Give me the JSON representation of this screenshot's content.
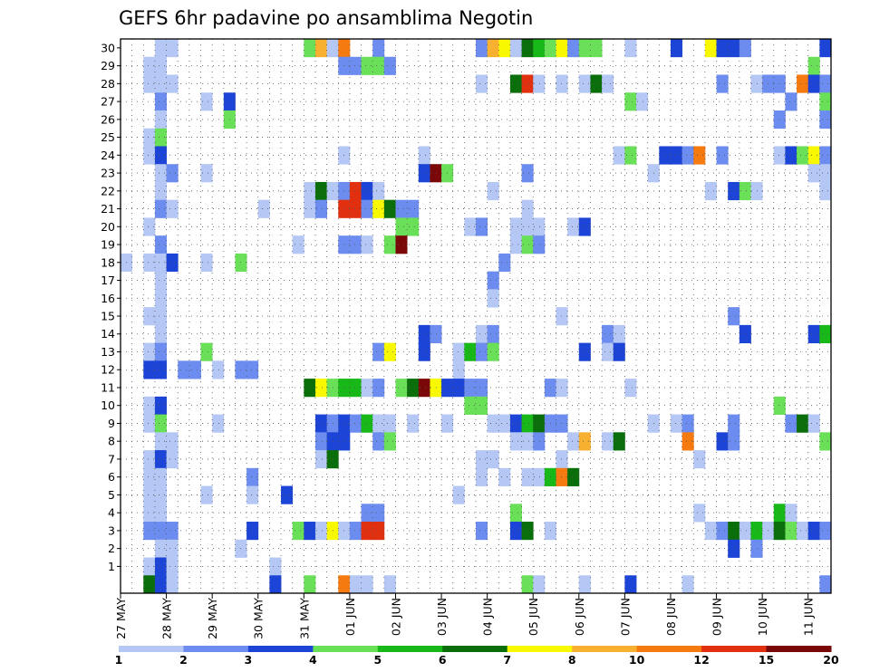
{
  "chart_data": {
    "type": "heatmap",
    "title": "GEFS 6hr padavine po ansamblima Negotin",
    "x_tick_labels": [
      "27 MAY",
      "28 MAY",
      "29 MAY",
      "30 MAY",
      "31 MAY",
      "01 JUN",
      "02 JUN",
      "03 JUN",
      "04 JUN",
      "05 JUN",
      "06 JUN",
      "07 JUN",
      "08 JUN",
      "09 JUN",
      "10 JUN",
      "11 JUN"
    ],
    "y_tick_labels": [
      "1",
      "2",
      "3",
      "4",
      "5",
      "6",
      "7",
      "8",
      "9",
      "10",
      "11",
      "12",
      "13",
      "14",
      "15",
      "16",
      "17",
      "18",
      "19",
      "20",
      "21",
      "22",
      "23",
      "24",
      "25",
      "26",
      "27",
      "28",
      "29",
      "30"
    ],
    "time_steps": 62,
    "members": 31,
    "grid": true,
    "colorbar": {
      "position": "bottom",
      "labels": [
        "1",
        "2",
        "3",
        "4",
        "5",
        "6",
        "7",
        "8",
        "10",
        "12",
        "15",
        "20"
      ],
      "colors": [
        "#b5c7f5",
        "#6d8cef",
        "#1c44d6",
        "#6ae058",
        "#17b817",
        "#0a6e0a",
        "#f8f800",
        "#f8b030",
        "#f57a10",
        "#e03010",
        "#7a0808"
      ]
    },
    "cells": [
      [
        3,
        30,
        1
      ],
      [
        4,
        30,
        1
      ],
      [
        16,
        30,
        4
      ],
      [
        17,
        30,
        8
      ],
      [
        18,
        30,
        1
      ],
      [
        19,
        30,
        9
      ],
      [
        22,
        30,
        2
      ],
      [
        31,
        30,
        2
      ],
      [
        32,
        30,
        8
      ],
      [
        33,
        30,
        7
      ],
      [
        34,
        30,
        1
      ],
      [
        35,
        30,
        6
      ],
      [
        36,
        30,
        5
      ],
      [
        37,
        30,
        4
      ],
      [
        38,
        30,
        7
      ],
      [
        39,
        30,
        2
      ],
      [
        40,
        30,
        4
      ],
      [
        41,
        30,
        4
      ],
      [
        44,
        30,
        1
      ],
      [
        48,
        30,
        3
      ],
      [
        51,
        30,
        7
      ],
      [
        52,
        30,
        3
      ],
      [
        53,
        30,
        3
      ],
      [
        54,
        30,
        2
      ],
      [
        61,
        30,
        3
      ],
      [
        2,
        29,
        1
      ],
      [
        3,
        29,
        1
      ],
      [
        19,
        29,
        2
      ],
      [
        20,
        29,
        2
      ],
      [
        21,
        29,
        4
      ],
      [
        22,
        29,
        4
      ],
      [
        23,
        29,
        2
      ],
      [
        60,
        29,
        4
      ],
      [
        2,
        28,
        1
      ],
      [
        3,
        28,
        1
      ],
      [
        4,
        28,
        1
      ],
      [
        31,
        28,
        1
      ],
      [
        34,
        28,
        6
      ],
      [
        35,
        28,
        10
      ],
      [
        36,
        28,
        1
      ],
      [
        38,
        28,
        1
      ],
      [
        40,
        28,
        1
      ],
      [
        41,
        28,
        6
      ],
      [
        42,
        28,
        1
      ],
      [
        52,
        28,
        2
      ],
      [
        55,
        28,
        1
      ],
      [
        56,
        28,
        2
      ],
      [
        57,
        28,
        2
      ],
      [
        59,
        28,
        9
      ],
      [
        60,
        28,
        3
      ],
      [
        61,
        28,
        2
      ],
      [
        3,
        27,
        2
      ],
      [
        7,
        27,
        1
      ],
      [
        9,
        27,
        3
      ],
      [
        44,
        27,
        4
      ],
      [
        45,
        27,
        1
      ],
      [
        58,
        27,
        2
      ],
      [
        61,
        27,
        4
      ],
      [
        3,
        26,
        1
      ],
      [
        9,
        26,
        4
      ],
      [
        57,
        26,
        2
      ],
      [
        61,
        26,
        2
      ],
      [
        2,
        25,
        1
      ],
      [
        3,
        25,
        4
      ],
      [
        2,
        24,
        1
      ],
      [
        3,
        24,
        3
      ],
      [
        19,
        24,
        1
      ],
      [
        26,
        24,
        1
      ],
      [
        43,
        24,
        1
      ],
      [
        44,
        24,
        4
      ],
      [
        47,
        24,
        3
      ],
      [
        48,
        24,
        3
      ],
      [
        49,
        24,
        2
      ],
      [
        50,
        24,
        9
      ],
      [
        52,
        24,
        2
      ],
      [
        57,
        24,
        1
      ],
      [
        58,
        24,
        3
      ],
      [
        59,
        24,
        4
      ],
      [
        60,
        24,
        7
      ],
      [
        61,
        24,
        2
      ],
      [
        3,
        23,
        1
      ],
      [
        4,
        23,
        2
      ],
      [
        7,
        23,
        1
      ],
      [
        26,
        23,
        3
      ],
      [
        27,
        23,
        11
      ],
      [
        28,
        23,
        4
      ],
      [
        35,
        23,
        2
      ],
      [
        46,
        23,
        1
      ],
      [
        60,
        23,
        1
      ],
      [
        61,
        23,
        1
      ],
      [
        3,
        22,
        1
      ],
      [
        16,
        22,
        1
      ],
      [
        17,
        22,
        6
      ],
      [
        18,
        22,
        1
      ],
      [
        19,
        22,
        2
      ],
      [
        20,
        22,
        10
      ],
      [
        21,
        22,
        3
      ],
      [
        22,
        22,
        1
      ],
      [
        32,
        22,
        1
      ],
      [
        51,
        22,
        1
      ],
      [
        53,
        22,
        3
      ],
      [
        54,
        22,
        4
      ],
      [
        55,
        22,
        1
      ],
      [
        61,
        22,
        1
      ],
      [
        3,
        21,
        2
      ],
      [
        4,
        21,
        1
      ],
      [
        12,
        21,
        1
      ],
      [
        16,
        21,
        1
      ],
      [
        17,
        21,
        2
      ],
      [
        19,
        21,
        10
      ],
      [
        20,
        21,
        10
      ],
      [
        21,
        21,
        2
      ],
      [
        22,
        21,
        7
      ],
      [
        23,
        21,
        6
      ],
      [
        24,
        21,
        2
      ],
      [
        25,
        21,
        2
      ],
      [
        35,
        21,
        1
      ],
      [
        2,
        20,
        1
      ],
      [
        24,
        20,
        4
      ],
      [
        25,
        20,
        4
      ],
      [
        30,
        20,
        1
      ],
      [
        31,
        20,
        2
      ],
      [
        34,
        20,
        1
      ],
      [
        35,
        20,
        1
      ],
      [
        36,
        20,
        1
      ],
      [
        39,
        20,
        1
      ],
      [
        40,
        20,
        3
      ],
      [
        3,
        19,
        2
      ],
      [
        15,
        19,
        1
      ],
      [
        19,
        19,
        2
      ],
      [
        20,
        19,
        2
      ],
      [
        21,
        19,
        1
      ],
      [
        23,
        19,
        4
      ],
      [
        24,
        19,
        11
      ],
      [
        34,
        19,
        1
      ],
      [
        35,
        19,
        4
      ],
      [
        36,
        19,
        2
      ],
      [
        0,
        18,
        1
      ],
      [
        2,
        18,
        1
      ],
      [
        3,
        18,
        1
      ],
      [
        4,
        18,
        3
      ],
      [
        7,
        18,
        1
      ],
      [
        10,
        18,
        4
      ],
      [
        33,
        18,
        2
      ],
      [
        3,
        17,
        1
      ],
      [
        32,
        17,
        2
      ],
      [
        3,
        16,
        1
      ],
      [
        32,
        16,
        1
      ],
      [
        2,
        15,
        1
      ],
      [
        3,
        15,
        1
      ],
      [
        38,
        15,
        1
      ],
      [
        53,
        15,
        2
      ],
      [
        3,
        14,
        1
      ],
      [
        26,
        14,
        3
      ],
      [
        27,
        14,
        2
      ],
      [
        31,
        14,
        1
      ],
      [
        32,
        14,
        2
      ],
      [
        42,
        14,
        2
      ],
      [
        43,
        14,
        1
      ],
      [
        54,
        14,
        3
      ],
      [
        60,
        14,
        3
      ],
      [
        61,
        14,
        5
      ],
      [
        2,
        13,
        1
      ],
      [
        3,
        13,
        2
      ],
      [
        7,
        13,
        4
      ],
      [
        22,
        13,
        2
      ],
      [
        23,
        13,
        7
      ],
      [
        26,
        13,
        3
      ],
      [
        29,
        13,
        1
      ],
      [
        30,
        13,
        5
      ],
      [
        31,
        13,
        2
      ],
      [
        32,
        13,
        4
      ],
      [
        40,
        13,
        3
      ],
      [
        42,
        13,
        1
      ],
      [
        43,
        13,
        3
      ],
      [
        2,
        12,
        3
      ],
      [
        3,
        12,
        3
      ],
      [
        5,
        12,
        2
      ],
      [
        6,
        12,
        2
      ],
      [
        8,
        12,
        1
      ],
      [
        10,
        12,
        2
      ],
      [
        11,
        12,
        2
      ],
      [
        29,
        12,
        1
      ],
      [
        16,
        11,
        6
      ],
      [
        17,
        11,
        7
      ],
      [
        18,
        11,
        4
      ],
      [
        19,
        11,
        5
      ],
      [
        20,
        11,
        5
      ],
      [
        21,
        11,
        1
      ],
      [
        22,
        11,
        2
      ],
      [
        24,
        11,
        4
      ],
      [
        25,
        11,
        6
      ],
      [
        26,
        11,
        20
      ],
      [
        27,
        11,
        7
      ],
      [
        28,
        11,
        3
      ],
      [
        29,
        11,
        3
      ],
      [
        30,
        11,
        2
      ],
      [
        31,
        11,
        2
      ],
      [
        37,
        11,
        2
      ],
      [
        38,
        11,
        1
      ],
      [
        44,
        11,
        1
      ],
      [
        2,
        10,
        1
      ],
      [
        3,
        10,
        3
      ],
      [
        30,
        10,
        4
      ],
      [
        31,
        10,
        4
      ],
      [
        57,
        10,
        4
      ],
      [
        2,
        9,
        1
      ],
      [
        3,
        9,
        4
      ],
      [
        8,
        9,
        1
      ],
      [
        17,
        9,
        3
      ],
      [
        18,
        9,
        2
      ],
      [
        19,
        9,
        3
      ],
      [
        20,
        9,
        2
      ],
      [
        21,
        9,
        5
      ],
      [
        22,
        9,
        1
      ],
      [
        23,
        9,
        1
      ],
      [
        25,
        9,
        1
      ],
      [
        28,
        9,
        1
      ],
      [
        32,
        9,
        1
      ],
      [
        33,
        9,
        1
      ],
      [
        34,
        9,
        3
      ],
      [
        35,
        9,
        5
      ],
      [
        36,
        9,
        6
      ],
      [
        37,
        9,
        2
      ],
      [
        38,
        9,
        2
      ],
      [
        46,
        9,
        1
      ],
      [
        48,
        9,
        1
      ],
      [
        49,
        9,
        2
      ],
      [
        53,
        9,
        2
      ],
      [
        58,
        9,
        2
      ],
      [
        59,
        9,
        6
      ],
      [
        60,
        9,
        1
      ],
      [
        3,
        8,
        1
      ],
      [
        4,
        8,
        1
      ],
      [
        17,
        8,
        2
      ],
      [
        18,
        8,
        3
      ],
      [
        19,
        8,
        3
      ],
      [
        22,
        8,
        2
      ],
      [
        23,
        8,
        4
      ],
      [
        34,
        8,
        1
      ],
      [
        35,
        8,
        1
      ],
      [
        36,
        8,
        2
      ],
      [
        39,
        8,
        1
      ],
      [
        40,
        8,
        8
      ],
      [
        42,
        8,
        1
      ],
      [
        43,
        8,
        6
      ],
      [
        49,
        8,
        9
      ],
      [
        52,
        8,
        3
      ],
      [
        53,
        8,
        2
      ],
      [
        61,
        8,
        4
      ],
      [
        2,
        7,
        1
      ],
      [
        3,
        7,
        3
      ],
      [
        4,
        7,
        1
      ],
      [
        17,
        7,
        1
      ],
      [
        18,
        7,
        6
      ],
      [
        31,
        7,
        1
      ],
      [
        32,
        7,
        1
      ],
      [
        38,
        7,
        1
      ],
      [
        50,
        7,
        1
      ],
      [
        2,
        6,
        1
      ],
      [
        3,
        6,
        1
      ],
      [
        11,
        6,
        2
      ],
      [
        31,
        6,
        1
      ],
      [
        33,
        6,
        1
      ],
      [
        35,
        6,
        1
      ],
      [
        36,
        6,
        1
      ],
      [
        37,
        6,
        5
      ],
      [
        38,
        6,
        9
      ],
      [
        39,
        6,
        6
      ],
      [
        2,
        5,
        1
      ],
      [
        3,
        5,
        1
      ],
      [
        7,
        5,
        1
      ],
      [
        11,
        5,
        1
      ],
      [
        14,
        5,
        3
      ],
      [
        29,
        5,
        1
      ],
      [
        2,
        4,
        1
      ],
      [
        3,
        4,
        1
      ],
      [
        21,
        4,
        2
      ],
      [
        22,
        4,
        2
      ],
      [
        34,
        4,
        4
      ],
      [
        50,
        4,
        1
      ],
      [
        57,
        4,
        5
      ],
      [
        58,
        4,
        1
      ],
      [
        2,
        3,
        2
      ],
      [
        3,
        3,
        2
      ],
      [
        4,
        3,
        2
      ],
      [
        11,
        3,
        3
      ],
      [
        15,
        3,
        4
      ],
      [
        16,
        3,
        3
      ],
      [
        17,
        3,
        1
      ],
      [
        18,
        3,
        7
      ],
      [
        19,
        3,
        1
      ],
      [
        20,
        3,
        2
      ],
      [
        21,
        3,
        10
      ],
      [
        22,
        3,
        10
      ],
      [
        31,
        3,
        2
      ],
      [
        34,
        3,
        3
      ],
      [
        35,
        3,
        6
      ],
      [
        37,
        3,
        1
      ],
      [
        51,
        3,
        1
      ],
      [
        52,
        3,
        2
      ],
      [
        53,
        3,
        6
      ],
      [
        54,
        3,
        1
      ],
      [
        55,
        3,
        5
      ],
      [
        56,
        3,
        1
      ],
      [
        57,
        3,
        6
      ],
      [
        58,
        3,
        4
      ],
      [
        59,
        3,
        1
      ],
      [
        60,
        3,
        3
      ],
      [
        61,
        3,
        2
      ],
      [
        3,
        2,
        1
      ],
      [
        4,
        2,
        1
      ],
      [
        10,
        2,
        1
      ],
      [
        53,
        2,
        3
      ],
      [
        55,
        2,
        2
      ],
      [
        2,
        1,
        1
      ],
      [
        3,
        1,
        3
      ],
      [
        4,
        1,
        1
      ],
      [
        13,
        1,
        1
      ],
      [
        2,
        0,
        6
      ],
      [
        3,
        0,
        3
      ],
      [
        4,
        0,
        1
      ],
      [
        13,
        0,
        3
      ],
      [
        16,
        0,
        4
      ],
      [
        19,
        0,
        9
      ],
      [
        20,
        0,
        1
      ],
      [
        21,
        0,
        1
      ],
      [
        23,
        0,
        1
      ],
      [
        35,
        0,
        4
      ],
      [
        36,
        0,
        1
      ],
      [
        40,
        0,
        1
      ],
      [
        44,
        0,
        3
      ],
      [
        49,
        0,
        1
      ],
      [
        61,
        0,
        2
      ]
    ]
  }
}
